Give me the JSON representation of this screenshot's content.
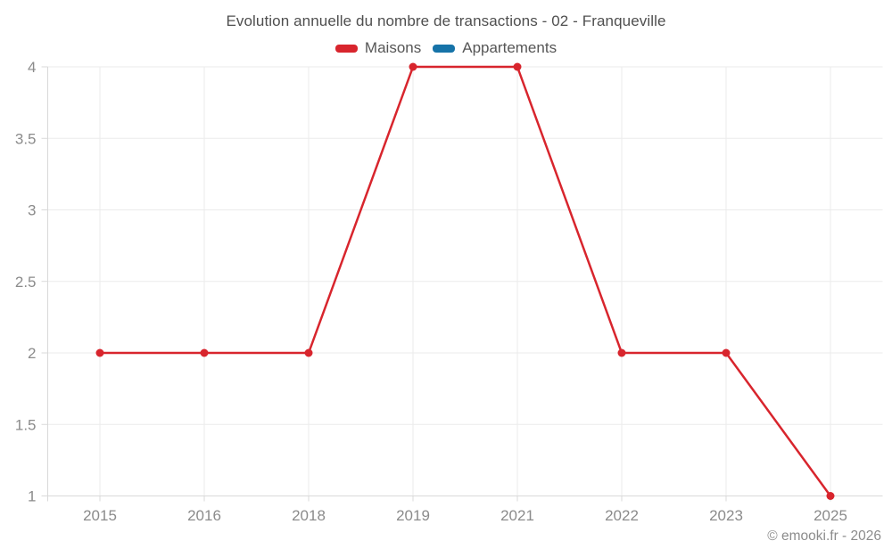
{
  "header": {
    "title": "Evolution annuelle du nombre de transactions - 02 - Franqueville"
  },
  "legend": {
    "position": "top",
    "items": [
      {
        "id": "maisons",
        "label": "Maisons",
        "color": "#d8252d"
      },
      {
        "id": "appartements",
        "label": "Appartements",
        "color": "#1673a8"
      }
    ]
  },
  "footer": {
    "copyright": "© emooki.fr - 2026"
  },
  "colors": {
    "background": "#ffffff",
    "title_text": "#4f4f4f",
    "legend_text": "#565656",
    "tick_text": "#8b8b8b",
    "gridline": "#ebebeb",
    "axis_line": "#d9d9d9",
    "copyright_text": "#8c8c8c",
    "maisons_series": "#d8252d",
    "appartements_series": "#1673a8"
  },
  "chart_data": {
    "type": "line",
    "title": "Evolution annuelle du nombre de transactions - 02 - Franqueville",
    "categories": [
      "2015",
      "2016",
      "2018",
      "2019",
      "2021",
      "2022",
      "2023",
      "2025"
    ],
    "series": [
      {
        "name": "Maisons",
        "color": "#d8252d",
        "marker": "circle",
        "values": [
          2,
          2,
          2,
          4,
          4,
          2,
          2,
          1
        ]
      },
      {
        "name": "Appartements",
        "color": "#1673a8",
        "marker": "circle",
        "values": []
      }
    ],
    "xlabel": "",
    "ylabel": "",
    "ylim": [
      1,
      4
    ],
    "yticks": [
      1,
      1.5,
      2,
      2.5,
      3,
      3.5,
      4
    ],
    "grid": true,
    "legend_position": "top"
  }
}
